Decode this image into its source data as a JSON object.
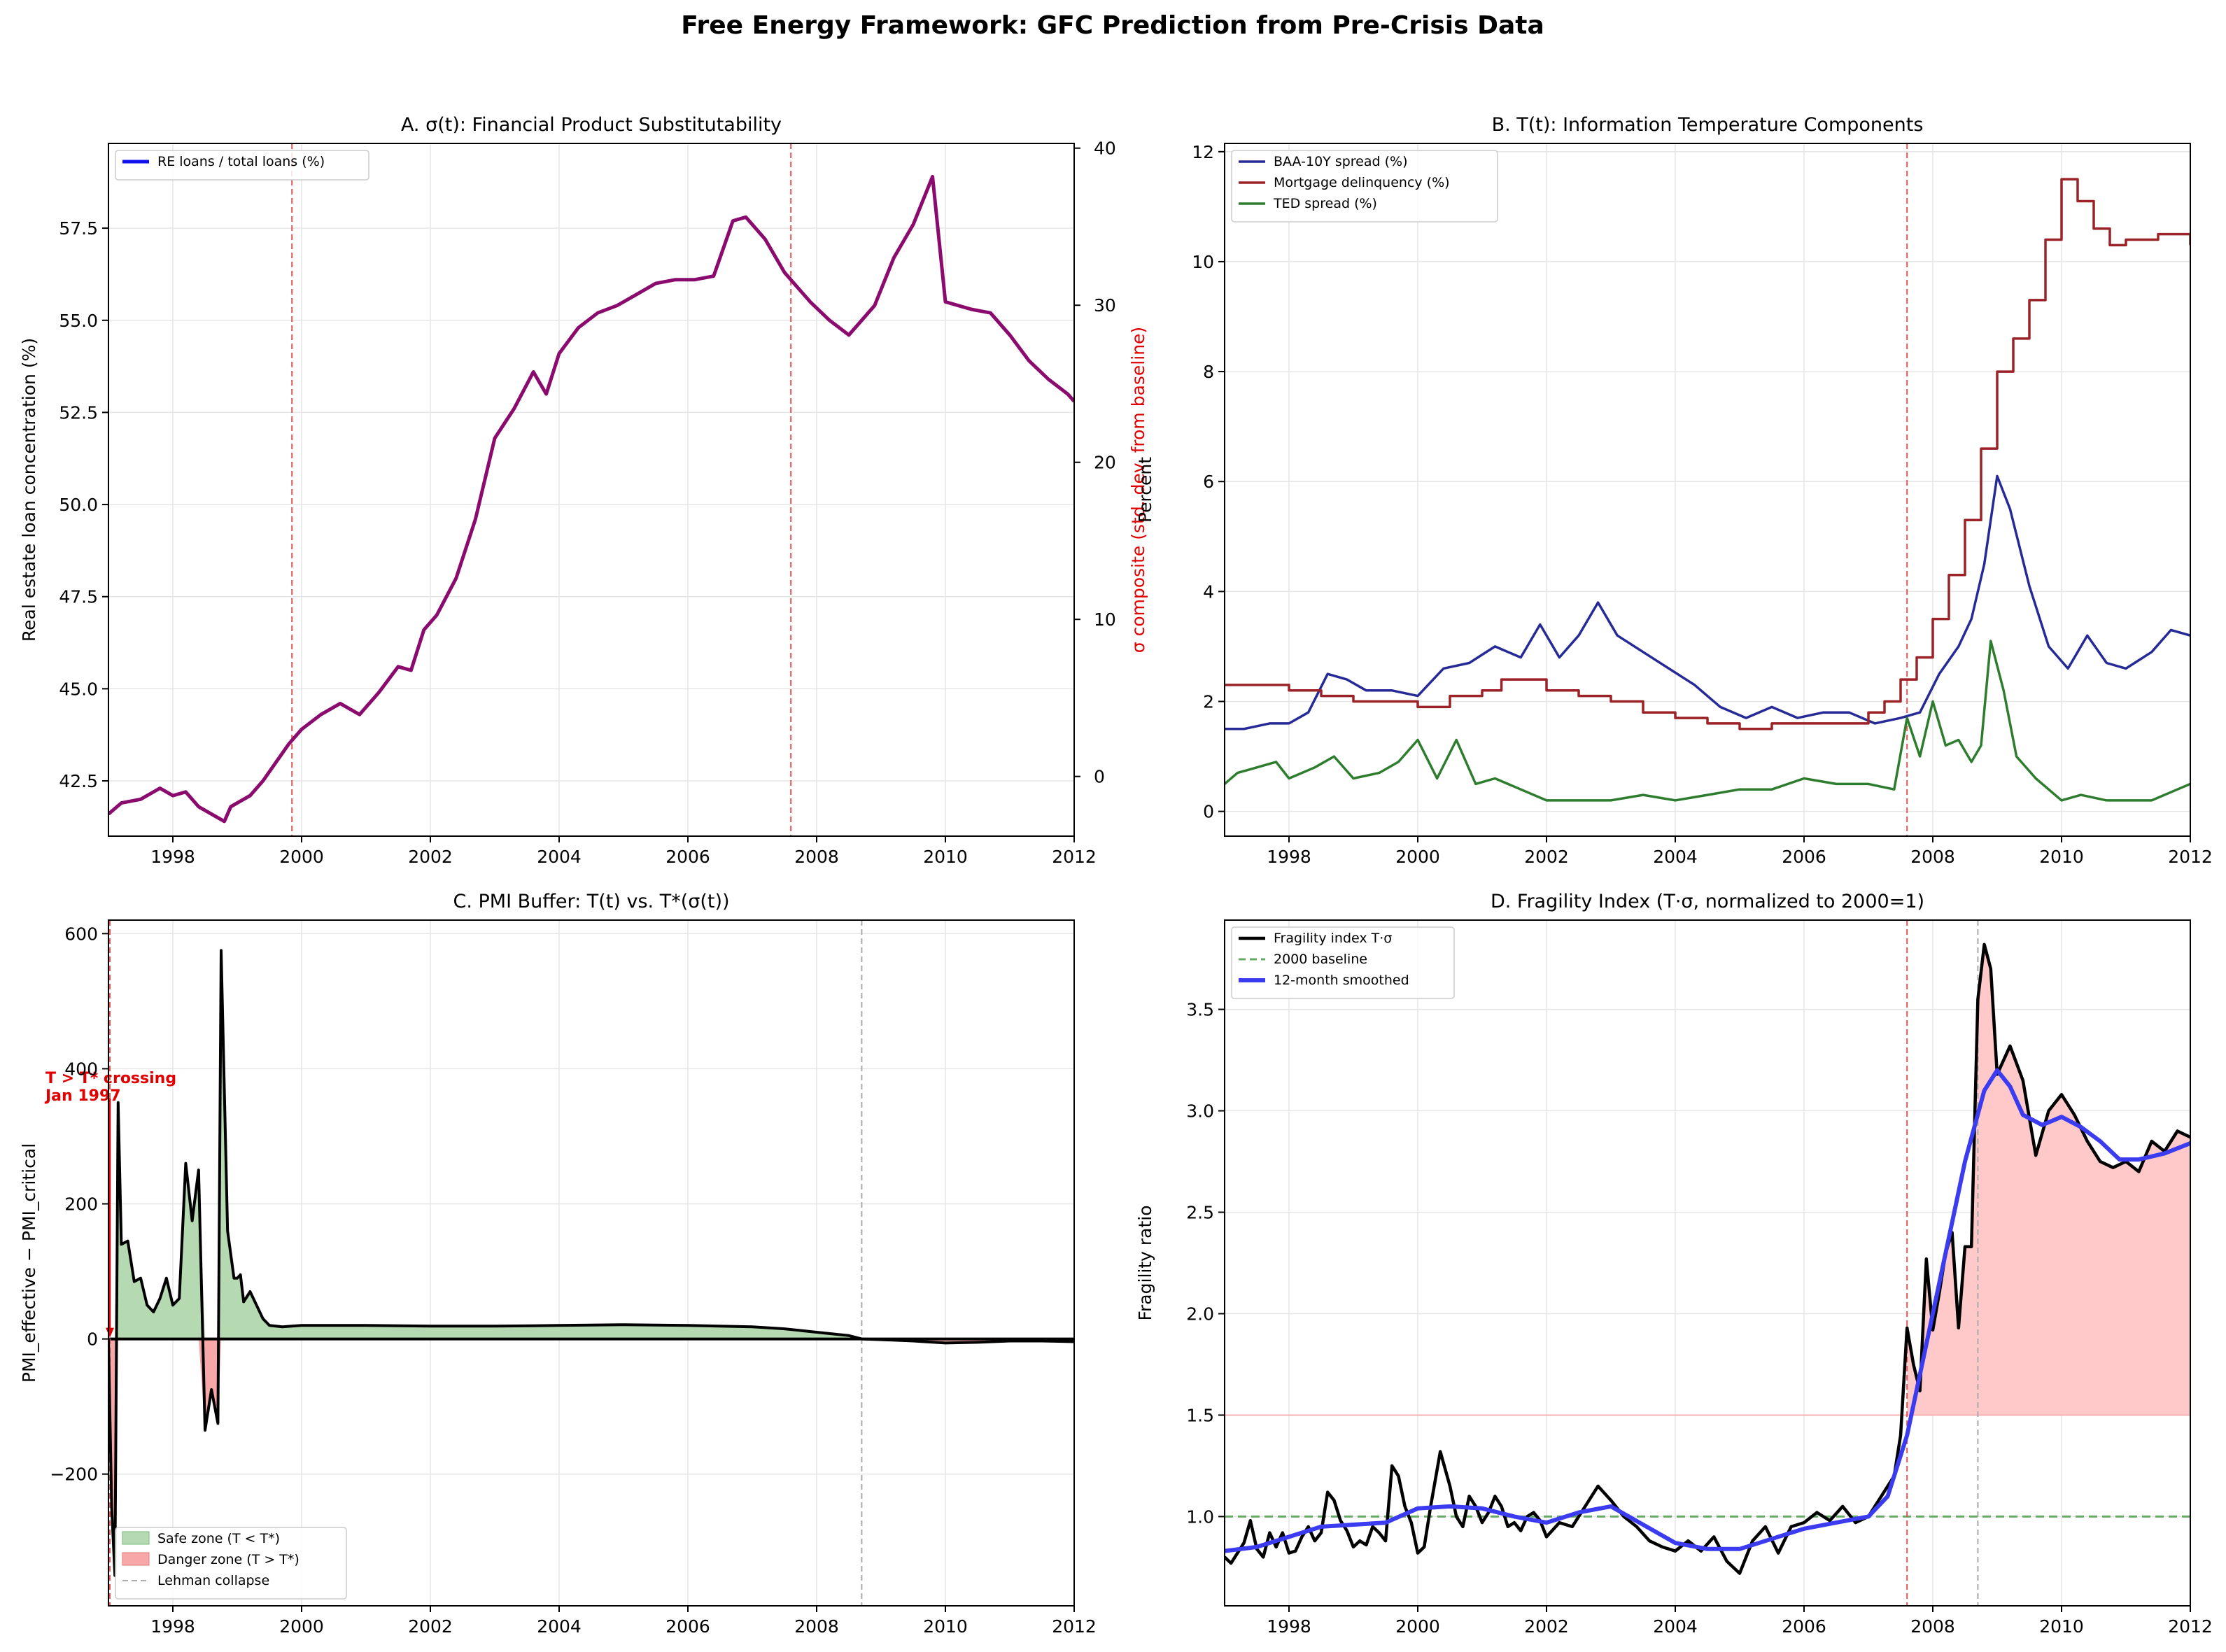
{
  "figure_title": "Free Energy Framework: GFC Prediction from Pre-Crisis Data",
  "colors": {
    "purple": "#8b0a6e",
    "navy": "#262a96",
    "darkred": "#9b2226",
    "green": "#2e7d2e",
    "black": "#000000",
    "blue": "#3b3bf0",
    "red_dash": "#e05555",
    "gray_dash": "#aaaaaa",
    "safe_fill": "#b5d9b0",
    "danger_fill": "#ffc9c9",
    "baseline_green": "#66aa66"
  },
  "chart_data": [
    {
      "id": "A",
      "type": "line",
      "title": "A. σ(t): Financial Product Substitutability",
      "xlabel": "",
      "ylabel": "Real estate loan concentration (%)",
      "ylabel_right": "σ composite (std. dev. from baseline)",
      "xlim": [
        1997,
        2012
      ],
      "ylim": [
        41.0,
        59.8
      ],
      "ylim_right": [
        -3.8,
        40.3
      ],
      "xticks": [
        "1998",
        "2000",
        "2002",
        "2004",
        "2006",
        "2008",
        "2010",
        "2012"
      ],
      "yticks": [
        "42.5",
        "45.0",
        "47.5",
        "50.0",
        "52.5",
        "55.0",
        "57.5"
      ],
      "yticks_right": [
        "0",
        "10",
        "20",
        "30",
        "40"
      ],
      "vlines": [
        1999.85,
        2007.6
      ],
      "legend": [
        "RE loans / total loans (%)"
      ],
      "series": [
        {
          "name": "RE loans / total loans (%)",
          "x": [
            1997,
            1997.2,
            1997.5,
            1997.8,
            1998.0,
            1998.2,
            1998.4,
            1998.6,
            1998.8,
            1998.9,
            1999.0,
            1999.2,
            1999.4,
            1999.6,
            1999.8,
            2000.0,
            2000.3,
            2000.6,
            2000.9,
            2001.2,
            2001.5,
            2001.7,
            2001.9,
            2002.1,
            2002.4,
            2002.7,
            2003.0,
            2003.3,
            2003.6,
            2003.8,
            2004.0,
            2004.3,
            2004.6,
            2004.9,
            2005.2,
            2005.5,
            2005.8,
            2006.1,
            2006.4,
            2006.7,
            2006.9,
            2007.2,
            2007.5,
            2007.7,
            2007.9,
            2008.2,
            2008.5,
            2008.7,
            2008.9,
            2009.2,
            2009.5,
            2009.8,
            2010.0,
            2010.2,
            2010.4,
            2010.7,
            2011.0,
            2011.3,
            2011.6,
            2011.9,
            2012.0
          ],
          "values": [
            41.6,
            41.9,
            42.0,
            42.3,
            42.1,
            42.2,
            41.8,
            41.6,
            41.4,
            41.8,
            41.9,
            42.1,
            42.5,
            43.0,
            43.5,
            43.9,
            44.3,
            44.6,
            44.3,
            44.9,
            45.6,
            45.5,
            46.6,
            47.0,
            48.0,
            49.6,
            51.8,
            52.6,
            53.6,
            53.0,
            54.1,
            54.8,
            55.2,
            55.4,
            55.7,
            56.0,
            56.1,
            56.1,
            56.2,
            57.7,
            57.8,
            57.2,
            56.3,
            55.9,
            55.5,
            55.0,
            54.6,
            55.0,
            55.4,
            56.7,
            57.6,
            58.9,
            55.5,
            55.4,
            55.3,
            55.2,
            54.6,
            53.9,
            53.4,
            53.0,
            52.8
          ]
        }
      ]
    },
    {
      "id": "B",
      "type": "line",
      "title": "B. T(t): Information Temperature Components",
      "xlabel": "",
      "ylabel": "Percent",
      "xlim": [
        1997,
        2012
      ],
      "ylim": [
        -0.45,
        12.15
      ],
      "xticks": [
        "1998",
        "2000",
        "2002",
        "2004",
        "2006",
        "2008",
        "2010",
        "2012"
      ],
      "yticks": [
        "0",
        "2",
        "4",
        "6",
        "8",
        "10",
        "12"
      ],
      "vlines": [
        2007.6
      ],
      "legend": [
        "BAA-10Y spread (%)",
        "Mortgage delinquency (%)",
        "TED spread (%)"
      ],
      "series": [
        {
          "name": "BAA-10Y spread (%)",
          "x": [
            1997,
            1997.3,
            1997.7,
            1998.0,
            1998.3,
            1998.6,
            1998.9,
            1999.2,
            1999.6,
            2000.0,
            2000.4,
            2000.8,
            2001.2,
            2001.6,
            2001.9,
            2002.2,
            2002.5,
            2002.8,
            2003.1,
            2003.5,
            2003.9,
            2004.3,
            2004.7,
            2005.1,
            2005.5,
            2005.9,
            2006.3,
            2006.7,
            2007.1,
            2007.5,
            2007.8,
            2008.1,
            2008.4,
            2008.6,
            2008.8,
            2009.0,
            2009.2,
            2009.5,
            2009.8,
            2010.1,
            2010.4,
            2010.7,
            2011.0,
            2011.4,
            2011.7,
            2012.0
          ],
          "values": [
            1.5,
            1.5,
            1.6,
            1.6,
            1.8,
            2.5,
            2.4,
            2.2,
            2.2,
            2.1,
            2.6,
            2.7,
            3.0,
            2.8,
            3.4,
            2.8,
            3.2,
            3.8,
            3.2,
            2.9,
            2.6,
            2.3,
            1.9,
            1.7,
            1.9,
            1.7,
            1.8,
            1.8,
            1.6,
            1.7,
            1.8,
            2.5,
            3.0,
            3.5,
            4.5,
            6.1,
            5.5,
            4.1,
            3.0,
            2.6,
            3.2,
            2.7,
            2.6,
            2.9,
            3.3,
            3.2
          ]
        },
        {
          "name": "Mortgage delinquency (%)",
          "x": [
            1997,
            1997.5,
            1998.0,
            1998.5,
            1999.0,
            1999.5,
            2000.0,
            2000.5,
            2001.0,
            2001.3,
            2001.6,
            2002.0,
            2002.5,
            2003.0,
            2003.5,
            2004.0,
            2004.5,
            2005.0,
            2005.5,
            2006.0,
            2006.5,
            2007.0,
            2007.25,
            2007.5,
            2007.75,
            2008.0,
            2008.25,
            2008.5,
            2008.75,
            2009.0,
            2009.25,
            2009.5,
            2009.75,
            2010.0,
            2010.25,
            2010.5,
            2010.75,
            2011.0,
            2011.5,
            2012.0
          ],
          "values": [
            2.3,
            2.3,
            2.2,
            2.1,
            2.0,
            2.0,
            1.9,
            2.1,
            2.2,
            2.4,
            2.4,
            2.2,
            2.1,
            2.0,
            1.8,
            1.7,
            1.6,
            1.5,
            1.6,
            1.6,
            1.6,
            1.8,
            2.0,
            2.4,
            2.8,
            3.5,
            4.3,
            5.3,
            6.6,
            8.0,
            8.6,
            9.3,
            10.4,
            11.5,
            11.1,
            10.6,
            10.3,
            10.4,
            10.5,
            10.3
          ]
        },
        {
          "name": "TED spread (%)",
          "x": [
            1997,
            1997.2,
            1997.5,
            1997.8,
            1998.0,
            1998.4,
            1998.7,
            1999.0,
            1999.4,
            1999.7,
            2000.0,
            2000.3,
            2000.6,
            2000.9,
            2001.2,
            2001.6,
            2002.0,
            2002.5,
            2003.0,
            2003.5,
            2004.0,
            2004.5,
            2005.0,
            2005.5,
            2006.0,
            2006.5,
            2007.0,
            2007.4,
            2007.6,
            2007.8,
            2008.0,
            2008.2,
            2008.4,
            2008.6,
            2008.75,
            2008.9,
            2009.1,
            2009.3,
            2009.6,
            2010.0,
            2010.3,
            2010.7,
            2011.0,
            2011.4,
            2011.8,
            2012.0
          ],
          "values": [
            0.5,
            0.7,
            0.8,
            0.9,
            0.6,
            0.8,
            1.0,
            0.6,
            0.7,
            0.9,
            1.3,
            0.6,
            1.3,
            0.5,
            0.6,
            0.4,
            0.2,
            0.2,
            0.2,
            0.3,
            0.2,
            0.3,
            0.4,
            0.4,
            0.6,
            0.5,
            0.5,
            0.4,
            1.7,
            1.0,
            2.0,
            1.2,
            1.3,
            0.9,
            1.2,
            3.1,
            2.2,
            1.0,
            0.6,
            0.2,
            0.3,
            0.2,
            0.2,
            0.2,
            0.4,
            0.5
          ]
        }
      ]
    },
    {
      "id": "C",
      "type": "area",
      "title": "C. PMI Buffer: T(t) vs. T*(σ(t))",
      "xlabel": "",
      "ylabel": "PMI_effective − PMI_critical",
      "xlim": [
        1997,
        2012
      ],
      "ylim": [
        -395,
        620
      ],
      "xticks": [
        "1998",
        "2000",
        "2002",
        "2004",
        "2006",
        "2008",
        "2010",
        "2012"
      ],
      "yticks": [
        "−200",
        "0",
        "200",
        "400",
        "600"
      ],
      "vlines": [
        2008.7
      ],
      "annotation": {
        "text": "T > T* crossing",
        "text2": "Jan 1997",
        "x": 1997.0,
        "y": 0
      },
      "legend": [
        "Safe zone (T < T*)",
        "Danger zone (T > T*)",
        "Lehman collapse"
      ],
      "series": [
        {
          "name": "PMI_effective − PMI_critical",
          "x": [
            1997.0,
            1997.05,
            1997.1,
            1997.15,
            1997.2,
            1997.3,
            1997.4,
            1997.5,
            1997.6,
            1997.7,
            1997.8,
            1997.9,
            1998.0,
            1998.1,
            1998.2,
            1998.3,
            1998.4,
            1998.5,
            1998.6,
            1998.7,
            1998.75,
            1998.85,
            1998.95,
            1999.0,
            1999.05,
            1999.1,
            1999.2,
            1999.3,
            1999.4,
            1999.5,
            1999.7,
            2000.0,
            2001.0,
            2002.0,
            2003.0,
            2004.0,
            2005.0,
            2006.0,
            2007.0,
            2007.5,
            2008.0,
            2008.5,
            2008.7,
            2009.0,
            2009.5,
            2010.0,
            2010.5,
            2011.0,
            2011.5,
            2012.0
          ],
          "values": [
            0,
            -250,
            -350,
            350,
            140,
            145,
            85,
            90,
            50,
            40,
            60,
            90,
            50,
            60,
            260,
            175,
            250,
            -135,
            -75,
            -125,
            575,
            160,
            90,
            90,
            95,
            55,
            70,
            50,
            30,
            20,
            18,
            20,
            20,
            19,
            19,
            20,
            21,
            20,
            18,
            15,
            10,
            5,
            0,
            -1,
            -3,
            -6,
            -5,
            -3,
            -3,
            -4
          ]
        }
      ]
    },
    {
      "id": "D",
      "type": "line",
      "title": "D. Fragility Index (T·σ, normalized to 2000=1)",
      "xlabel": "",
      "ylabel": "Fragility ratio",
      "xlim": [
        1997,
        2012
      ],
      "ylim": [
        0.56,
        3.94
      ],
      "xticks": [
        "1998",
        "2000",
        "2002",
        "2004",
        "2006",
        "2008",
        "2010",
        "2012"
      ],
      "yticks": [
        "1.0",
        "1.5",
        "2.0",
        "2.5",
        "3.0",
        "3.5"
      ],
      "vlines": [
        2007.6,
        2008.7
      ],
      "hlines": [
        1.0,
        1.5
      ],
      "legend": [
        "Fragility index T·σ",
        "2000 baseline",
        "12-month smoothed"
      ],
      "series": [
        {
          "name": "Fragility index T·σ",
          "x": [
            1997.0,
            1997.1,
            1997.3,
            1997.4,
            1997.5,
            1997.6,
            1997.7,
            1997.8,
            1997.9,
            1998.0,
            1998.1,
            1998.2,
            1998.3,
            1998.4,
            1998.5,
            1998.6,
            1998.7,
            1998.8,
            1998.9,
            1999.0,
            1999.1,
            1999.2,
            1999.3,
            1999.4,
            1999.5,
            1999.6,
            1999.7,
            1999.8,
            1999.9,
            2000.0,
            2000.1,
            2000.2,
            2000.35,
            2000.5,
            2000.6,
            2000.7,
            2000.8,
            2000.9,
            2001.0,
            2001.1,
            2001.2,
            2001.3,
            2001.4,
            2001.5,
            2001.6,
            2001.7,
            2001.8,
            2001.9,
            2002.0,
            2002.2,
            2002.4,
            2002.6,
            2002.8,
            2003.0,
            2003.2,
            2003.4,
            2003.6,
            2003.8,
            2004.0,
            2004.2,
            2004.4,
            2004.6,
            2004.8,
            2005.0,
            2005.2,
            2005.4,
            2005.6,
            2005.8,
            2006.0,
            2006.2,
            2006.4,
            2006.6,
            2006.8,
            2007.0,
            2007.2,
            2007.4,
            2007.5,
            2007.6,
            2007.7,
            2007.8,
            2007.9,
            2008.0,
            2008.1,
            2008.2,
            2008.3,
            2008.4,
            2008.5,
            2008.6,
            2008.7,
            2008.8,
            2008.9,
            2009.0,
            2009.2,
            2009.4,
            2009.6,
            2009.8,
            2010.0,
            2010.2,
            2010.4,
            2010.6,
            2010.8,
            2011.0,
            2011.2,
            2011.4,
            2011.6,
            2011.8,
            2012.0
          ],
          "values": [
            0.8,
            0.77,
            0.87,
            0.98,
            0.84,
            0.8,
            0.92,
            0.85,
            0.92,
            0.82,
            0.83,
            0.9,
            0.95,
            0.88,
            0.92,
            1.12,
            1.08,
            0.98,
            0.93,
            0.85,
            0.88,
            0.86,
            0.95,
            0.92,
            0.88,
            1.25,
            1.2,
            1.05,
            0.97,
            0.82,
            0.85,
            1.05,
            1.32,
            1.15,
            1.0,
            0.95,
            1.1,
            1.05,
            0.97,
            1.02,
            1.1,
            1.05,
            0.95,
            0.97,
            0.93,
            1.0,
            1.02,
            0.98,
            0.9,
            0.97,
            0.95,
            1.05,
            1.15,
            1.08,
            1.0,
            0.95,
            0.88,
            0.85,
            0.83,
            0.88,
            0.83,
            0.9,
            0.78,
            0.72,
            0.88,
            0.95,
            0.82,
            0.95,
            0.97,
            1.02,
            0.98,
            1.05,
            0.97,
            1.0,
            1.1,
            1.2,
            1.4,
            1.93,
            1.75,
            1.62,
            2.27,
            1.92,
            2.1,
            2.3,
            2.4,
            1.93,
            2.33,
            2.33,
            3.55,
            3.82,
            3.7,
            3.18,
            3.32,
            3.15,
            2.78,
            3.0,
            3.08,
            2.98,
            2.85,
            2.75,
            2.72,
            2.75,
            2.7,
            2.85,
            2.8,
            2.9,
            2.87
          ]
        },
        {
          "name": "12-month smoothed",
          "x": [
            1997.0,
            1997.5,
            1998.0,
            1998.5,
            1999.0,
            1999.5,
            2000.0,
            2000.5,
            2001.0,
            2001.5,
            2002.0,
            2002.5,
            2003.0,
            2003.5,
            2004.0,
            2004.5,
            2005.0,
            2005.5,
            2006.0,
            2006.5,
            2007.0,
            2007.3,
            2007.6,
            2007.9,
            2008.2,
            2008.5,
            2008.8,
            2009.0,
            2009.2,
            2009.4,
            2009.7,
            2010.0,
            2010.3,
            2010.6,
            2010.9,
            2011.2,
            2011.6,
            2012.0
          ],
          "values": [
            0.83,
            0.85,
            0.9,
            0.95,
            0.96,
            0.97,
            1.04,
            1.05,
            1.04,
            1.0,
            0.97,
            1.02,
            1.05,
            0.96,
            0.87,
            0.84,
            0.84,
            0.89,
            0.94,
            0.97,
            1.0,
            1.1,
            1.4,
            1.85,
            2.3,
            2.75,
            3.1,
            3.2,
            3.12,
            2.98,
            2.93,
            2.97,
            2.92,
            2.85,
            2.76,
            2.76,
            2.79,
            2.84
          ]
        }
      ]
    }
  ]
}
